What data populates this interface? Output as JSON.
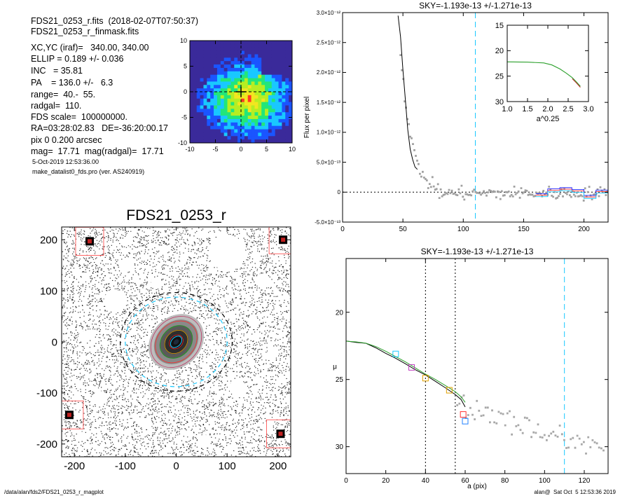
{
  "header": {
    "lines": [
      "FDS21_0253_r.fits  (2018-02-07T07:50:37)",
      "FDS21_0253_r_finmask.fits",
      "XC,YC (iraf)=   340.00, 340.00",
      "ELLIP = 0.189 +/- 0.036",
      "INC   = 35.81",
      "PA    = 136.0 +/-   6.3",
      "range=  40.-  55.",
      "radgal=  110.",
      "FDS scale=  100000000.",
      "RA=03:28:02.83   DE=-36:20:00.17",
      "pix 0 0.200 arcsec",
      "mag=  17.71  mag(radgal)=  17.71"
    ],
    "date": "5-Oct-2019 12:53:36.00",
    "program": "make_datalist0_fds.pro (ver. AS240919)"
  },
  "footer": {
    "path": "/data/alan/fds2/FDS21_0253_r_magplot",
    "user": "alan@  Sat Oct  5 12:53:36 2019"
  },
  "chart_data": [
    {
      "id": "thumbnail",
      "type": "heatmap",
      "title": "",
      "xlabel": "",
      "ylabel": "",
      "xlim": [
        -10,
        10
      ],
      "ylim": [
        -10,
        10
      ],
      "xticks": [
        -10,
        -5,
        0,
        5,
        10
      ],
      "yticks": [
        -10,
        -5,
        0,
        5,
        10
      ],
      "crosshair": [
        0,
        0
      ],
      "colors": [
        "#3a2a9a",
        "#1a55ff",
        "#19c8ff",
        "#22e67a",
        "#b6ee22",
        "#f2e620",
        "#ff3a24"
      ]
    },
    {
      "id": "galaxy-image",
      "type": "scatter",
      "title": "FDS21_0253_r",
      "xlabel": "",
      "ylabel": "",
      "xlim": [
        -225,
        225
      ],
      "ylim": [
        -225,
        225
      ],
      "xticks": [
        -200,
        -100,
        0,
        100,
        200
      ],
      "yticks": [
        -200,
        -100,
        0,
        100,
        200
      ],
      "center": [
        0,
        0
      ],
      "pa_deg": 136.0,
      "ellip": 0.189,
      "contour_semi_major": [
        15,
        25,
        35,
        45,
        55
      ],
      "sky_ring": [
        100,
        110
      ],
      "masked_sources": [
        {
          "x": 100,
          "y": 175,
          "r": 35
        },
        {
          "x": -120,
          "y": 80,
          "r": 22
        },
        {
          "x": 170,
          "y": 120,
          "r": 14
        },
        {
          "x": -180,
          "y": 10,
          "r": 12
        },
        {
          "x": 120,
          "y": -90,
          "r": 16
        },
        {
          "x": -150,
          "y": -110,
          "r": 14
        },
        {
          "x": 55,
          "y": -195,
          "r": 13
        },
        {
          "x": -60,
          "y": -160,
          "r": 10
        },
        {
          "x": 190,
          "y": -20,
          "r": 11
        },
        {
          "x": -95,
          "y": 150,
          "r": 12
        },
        {
          "x": 35,
          "y": 140,
          "r": 9
        },
        {
          "x": -40,
          "y": 115,
          "r": 10
        },
        {
          "x": 150,
          "y": 40,
          "r": 10
        },
        {
          "x": -185,
          "y": -185,
          "r": 9
        },
        {
          "x": 180,
          "y": -165,
          "r": 10
        }
      ],
      "stars": [
        {
          "x": -170,
          "y": 197
        },
        {
          "x": 210,
          "y": 200
        },
        {
          "x": -210,
          "y": -143
        },
        {
          "x": 205,
          "y": -180
        }
      ]
    },
    {
      "id": "sky-flux",
      "type": "scatter",
      "title": "SKY=-1.193e-13 +/-1.271e-13",
      "xlabel": "",
      "ylabel": "Flux per pixel",
      "xlim": [
        0,
        220
      ],
      "ylim": [
        -5e-13,
        3e-12
      ],
      "xticks": [
        0,
        50,
        100,
        150,
        200
      ],
      "yticks": [
        -5e-13,
        0,
        5e-13,
        1e-12,
        1.5e-12,
        2e-12,
        2.5e-12,
        3e-12
      ],
      "ytick_labels": [
        "-5.0×10⁻¹³",
        "0",
        "5.0×10⁻¹³",
        "1.0×10⁻¹²",
        "1.5×10⁻¹²",
        "2.0×10⁻¹²",
        "2.5×10⁻¹²",
        "3.0×10⁻¹²"
      ],
      "vline": 110,
      "profile_x": [
        46,
        48,
        50,
        52,
        54,
        56,
        58,
        60,
        62
      ],
      "profile_y": [
        2.95e-12,
        2.6e-12,
        2.05e-12,
        1.55e-12,
        1.05e-12,
        7.2e-13,
        5.5e-13,
        4.2e-13,
        3.8e-13
      ],
      "inset": {
        "xlabel": "a^0.25",
        "xlim": [
          1.0,
          3.0
        ],
        "ylim": [
          30,
          15
        ],
        "xticks": [
          1.0,
          1.5,
          2.0,
          2.5,
          3.0
        ],
        "yticks": [
          15,
          20,
          25,
          30
        ],
        "curve_x": [
          1.0,
          1.5,
          1.9,
          2.1,
          2.3,
          2.45,
          2.6,
          2.7,
          2.8
        ],
        "curve_y": [
          22.2,
          22.25,
          22.4,
          22.8,
          23.6,
          24.4,
          25.3,
          26.1,
          27.0
        ]
      }
    },
    {
      "id": "surface-brightness",
      "type": "line",
      "title": "SKY=-1.193e-13 +/-1.271e-13",
      "xlabel": "a (pix)",
      "ylabel": "μ",
      "xlim": [
        0,
        132
      ],
      "ylim": [
        32,
        16
      ],
      "xticks": [
        0,
        20,
        40,
        60,
        80,
        100,
        120
      ],
      "yticks": [
        20,
        25,
        30
      ],
      "vlines_dotted": [
        40,
        55
      ],
      "vline_dashed": 110,
      "series": [
        {
          "color": "#000000",
          "x": [
            0,
            5,
            10,
            15,
            20,
            25,
            30,
            35,
            40,
            45,
            50,
            55,
            58,
            60
          ],
          "y": [
            22.15,
            22.2,
            22.35,
            22.65,
            23.0,
            23.4,
            23.85,
            24.3,
            24.7,
            25.1,
            25.6,
            26.1,
            26.5,
            27.0
          ]
        },
        {
          "color": "#2ca02c",
          "x": [
            0,
            5,
            10,
            15,
            20,
            25,
            30,
            35,
            40,
            45,
            50,
            55,
            58,
            60
          ],
          "y": [
            22.15,
            22.2,
            22.3,
            22.55,
            22.9,
            23.3,
            23.7,
            24.15,
            24.6,
            25.0,
            25.45,
            25.9,
            26.3,
            26.7
          ]
        }
      ]
    }
  ]
}
